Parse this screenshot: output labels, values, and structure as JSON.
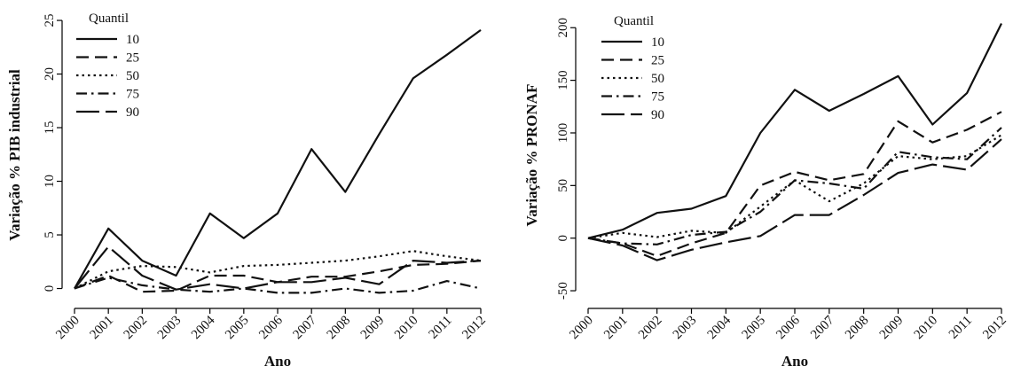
{
  "chart_data": [
    {
      "type": "line",
      "x": [
        2000,
        2001,
        2002,
        2003,
        2004,
        2005,
        2006,
        2007,
        2008,
        2009,
        2010,
        2011,
        2012
      ],
      "xlabel": "Ano",
      "ylabel": "Variação % PIB industrial",
      "ylim": [
        -0.7,
        25.5
      ],
      "yticks": [
        0,
        5,
        10,
        15,
        20,
        25
      ],
      "legend": {
        "title": "Quantil",
        "placement": "top-left"
      },
      "grid": false,
      "series": [
        {
          "name": "10",
          "dash": "solid",
          "values": [
            0,
            5.6,
            2.6,
            1.2,
            7.0,
            4.7,
            7.0,
            13.0,
            9.0,
            14.4,
            19.6,
            21.8,
            24.1
          ]
        },
        {
          "name": "25",
          "dash": "dashed",
          "values": [
            0,
            1.2,
            -0.3,
            -0.2,
            1.2,
            1.2,
            0.6,
            1.1,
            1.1,
            1.6,
            2.2,
            2.3,
            2.6
          ]
        },
        {
          "name": "50",
          "dash": "dotted",
          "values": [
            0,
            1.6,
            2.1,
            2.0,
            1.5,
            2.1,
            2.2,
            2.4,
            2.6,
            3.0,
            3.5,
            3.0,
            2.6
          ]
        },
        {
          "name": "75",
          "dash": "dashdot",
          "values": [
            0,
            1.0,
            0.3,
            -0.1,
            -0.3,
            0.0,
            -0.4,
            -0.4,
            0.0,
            -0.4,
            -0.2,
            0.7,
            0.0
          ]
        },
        {
          "name": "90",
          "dash": "longdash",
          "values": [
            0,
            3.9,
            1.2,
            -0.1,
            0.4,
            0.0,
            0.6,
            0.6,
            1.0,
            0.4,
            2.6,
            2.4,
            2.6
          ]
        }
      ]
    },
    {
      "type": "line",
      "x": [
        2000,
        2001,
        2002,
        2003,
        2004,
        2005,
        2006,
        2007,
        2008,
        2009,
        2010,
        2011,
        2012
      ],
      "xlabel": "Ano",
      "ylabel": "Variação % PRONAF",
      "ylim": [
        -55,
        212
      ],
      "yticks": [
        -50,
        0,
        50,
        100,
        150,
        200
      ],
      "legend": {
        "title": "Quantil",
        "placement": "top-left"
      },
      "grid": false,
      "series": [
        {
          "name": "10",
          "dash": "solid",
          "values": [
            0,
            8,
            24,
            28,
            40,
            100,
            141,
            121,
            137,
            154,
            108,
            138,
            204
          ]
        },
        {
          "name": "25",
          "dash": "dashed",
          "values": [
            0,
            -5,
            -17,
            -5,
            5,
            50,
            63,
            55,
            61,
            111,
            91,
            103,
            120
          ]
        },
        {
          "name": "50",
          "dash": "dotted",
          "values": [
            0,
            5,
            1,
            7,
            5,
            30,
            55,
            35,
            52,
            78,
            75,
            78,
            98
          ]
        },
        {
          "name": "75",
          "dash": "dashdot",
          "values": [
            0,
            -5,
            -6,
            3,
            6,
            25,
            55,
            52,
            47,
            82,
            77,
            75,
            105
          ]
        },
        {
          "name": "90",
          "dash": "longdash",
          "values": [
            0,
            -7,
            -21,
            -11,
            -4,
            2,
            22,
            22,
            41,
            62,
            70,
            65,
            94
          ]
        }
      ]
    }
  ]
}
